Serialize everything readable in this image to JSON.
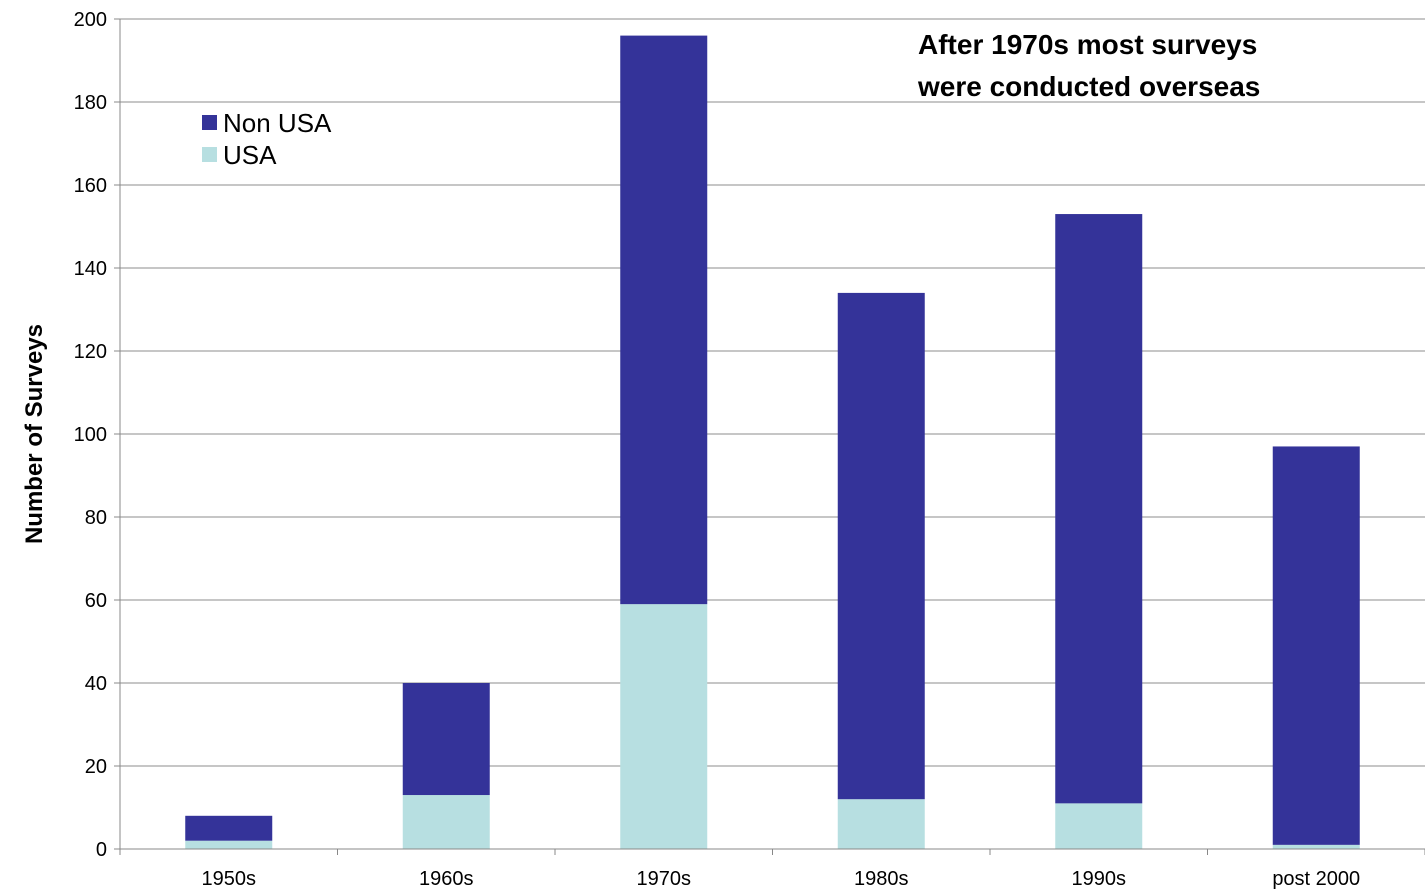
{
  "chart_data": {
    "type": "bar",
    "stacked": true,
    "categories": [
      "1950s",
      "1960s",
      "1970s",
      "1980s",
      "1990s",
      "post 2000"
    ],
    "series": [
      {
        "name": "USA",
        "values": [
          2,
          13,
          59,
          12,
          11,
          1
        ],
        "color": "#b7dfe1"
      },
      {
        "name": "Non USA",
        "values": [
          6,
          27,
          137,
          122,
          142,
          96
        ],
        "color": "#343399"
      }
    ],
    "ylabel": "Number of Surveys",
    "xlabel": "",
    "ylim": [
      0,
      200
    ],
    "yticks": [
      0,
      20,
      40,
      60,
      80,
      100,
      120,
      140,
      160,
      180,
      200
    ],
    "grid": true,
    "legend": {
      "placement": "top-left",
      "entries": [
        "Non USA",
        "USA"
      ]
    },
    "annotation": {
      "lines": [
        "After 1970s most surveys",
        "were conducted overseas"
      ],
      "placement": "top-right"
    }
  }
}
